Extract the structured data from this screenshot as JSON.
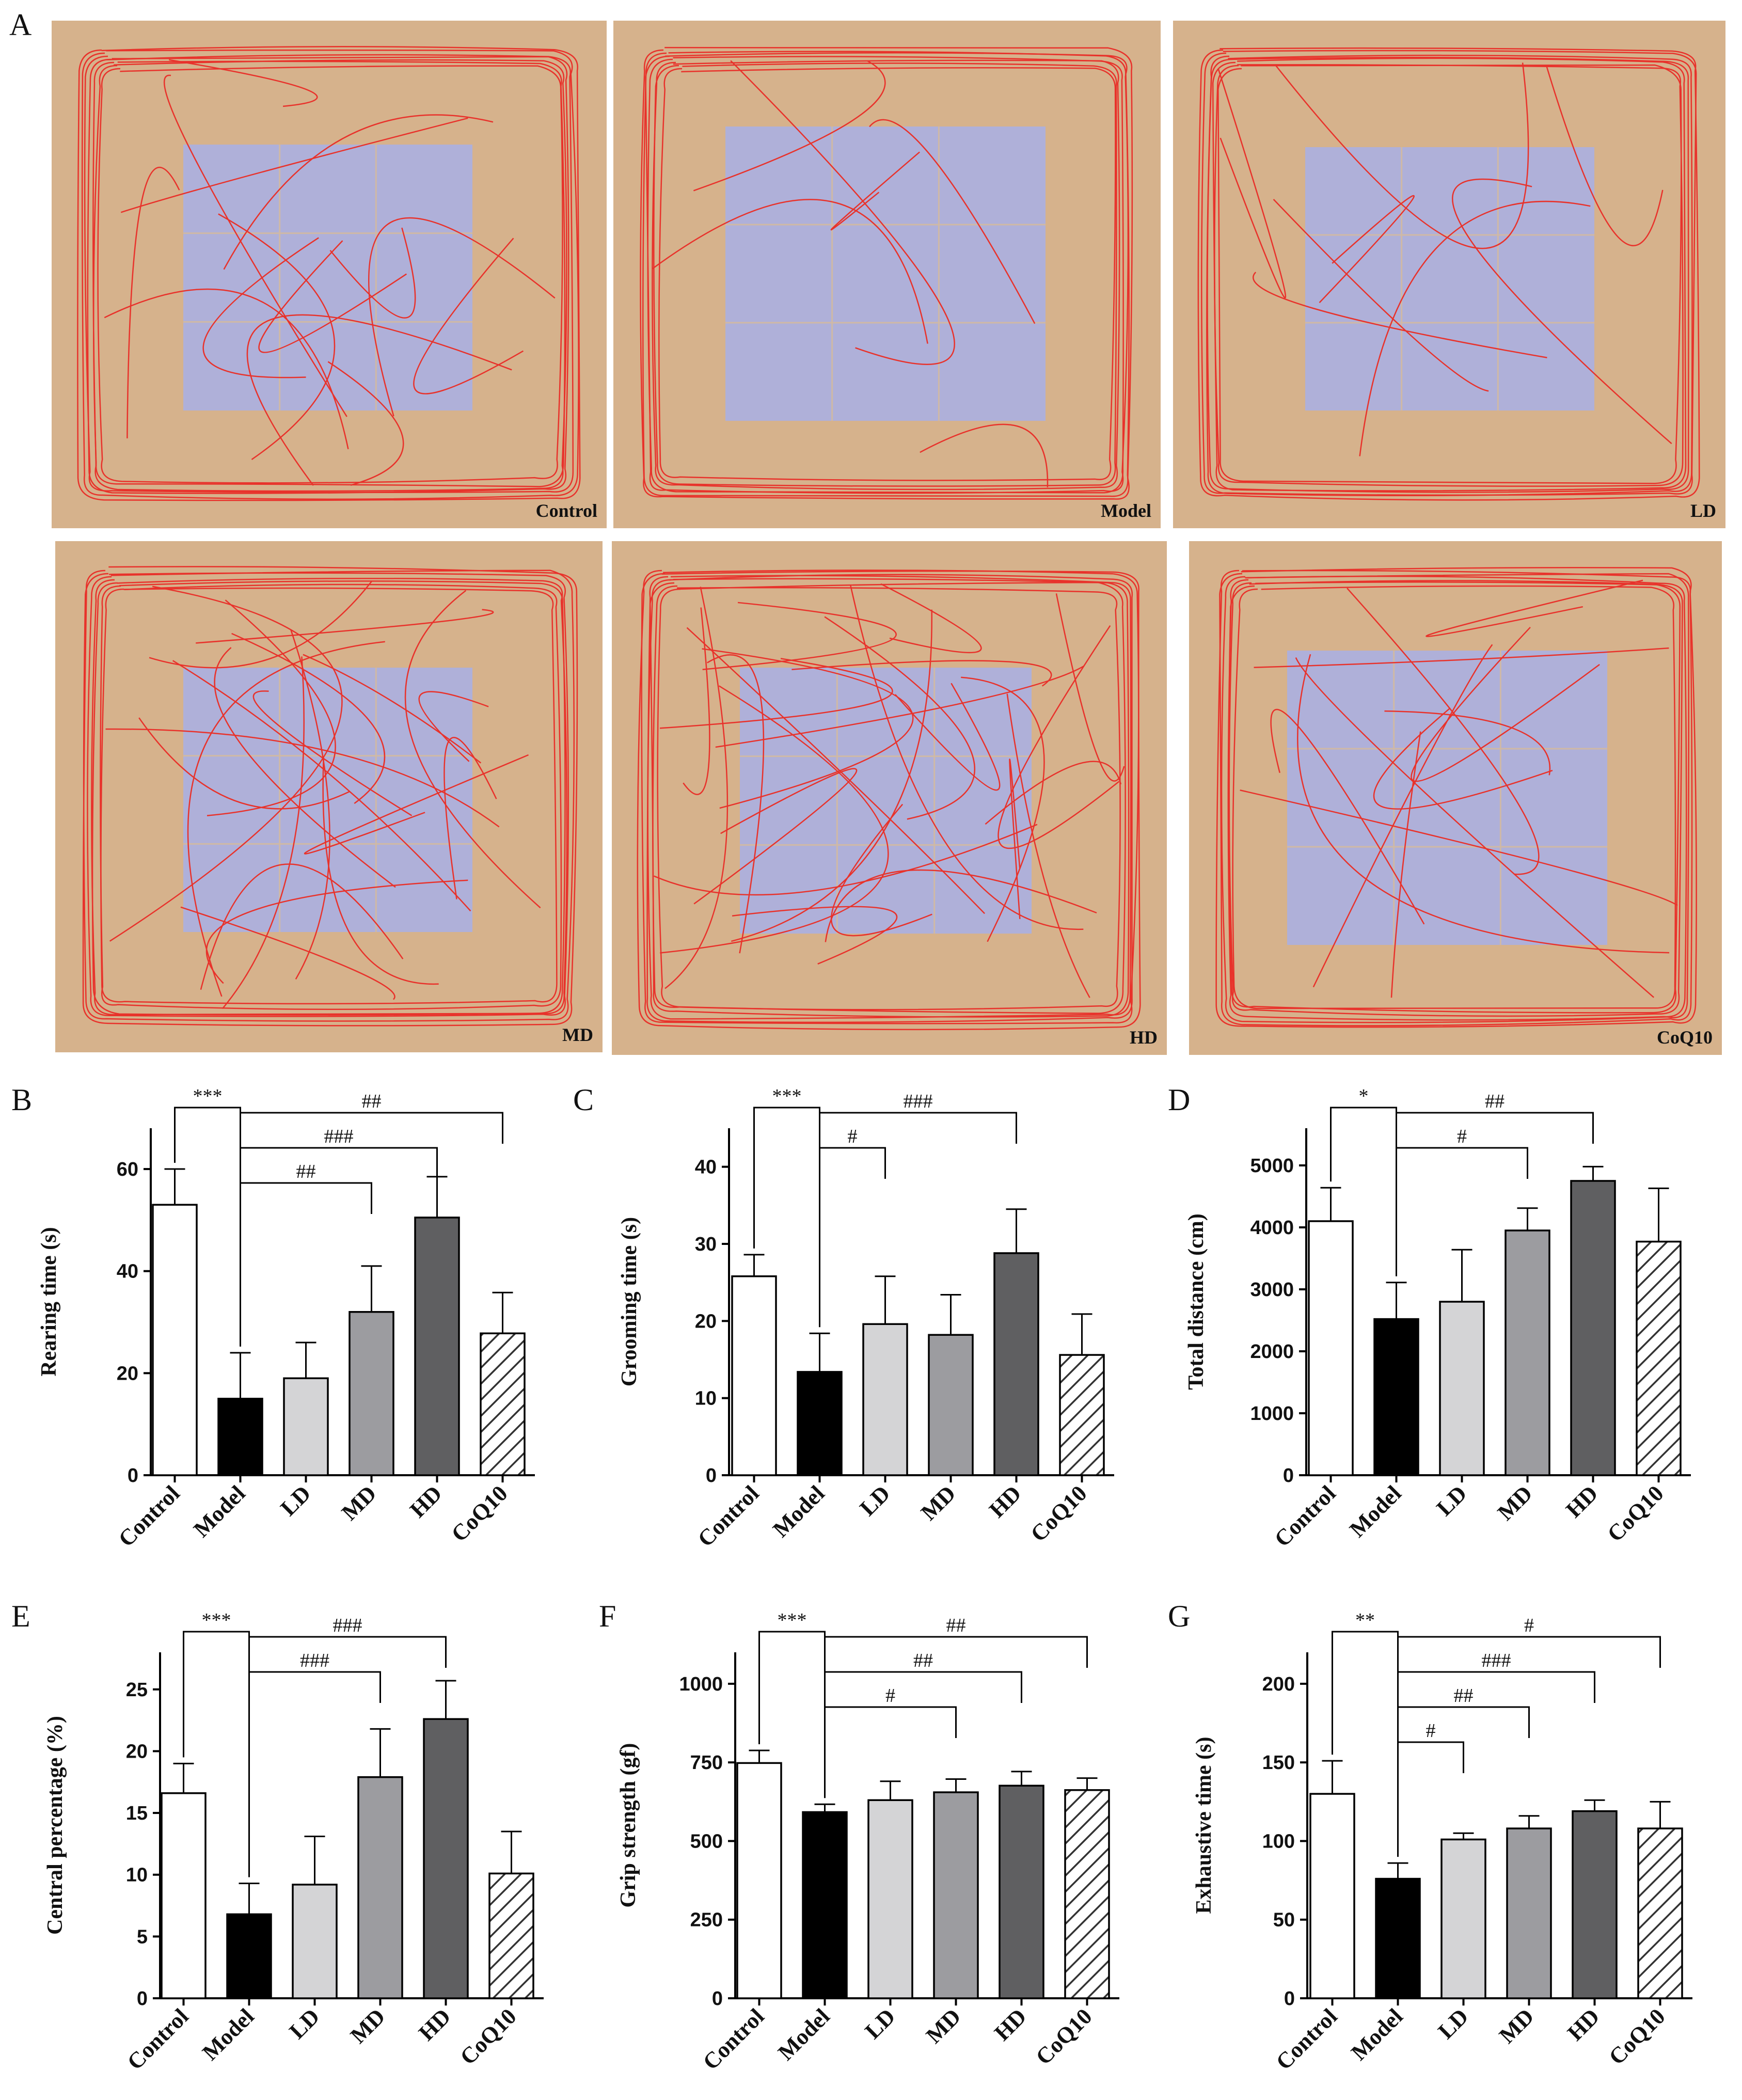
{
  "panel_a": {
    "letter": "A",
    "arenas": [
      {
        "label": "Control"
      },
      {
        "label": "Model"
      },
      {
        "label": "LD"
      },
      {
        "label": "MD"
      },
      {
        "label": "HD"
      },
      {
        "label": "CoQ10"
      }
    ],
    "colors": {
      "floor": "#d6b28c",
      "center": "#afb0d9",
      "grid": "#cfb9a6",
      "track": "#e8322b"
    }
  },
  "chart_data": [
    {
      "id": "B",
      "type": "bar",
      "ylabel": "Rearing time (s)",
      "categories": [
        "Control",
        "Model",
        "LD",
        "MD",
        "HD",
        "CoQ10"
      ],
      "values": [
        53,
        15,
        19,
        32,
        50.5,
        27.8
      ],
      "errors": [
        7,
        9,
        7,
        9,
        8,
        8
      ],
      "ylim": [
        0,
        68
      ],
      "yticks": [
        0,
        20,
        40,
        60
      ],
      "annotations": [
        {
          "from": 0,
          "to": 1,
          "label": "***"
        },
        {
          "from": 1,
          "to": 5,
          "label": "##"
        },
        {
          "from": 1,
          "to": 4,
          "label": "###"
        },
        {
          "from": 1,
          "to": 3,
          "label": "##"
        }
      ]
    },
    {
      "id": "C",
      "type": "bar",
      "ylabel": "Grooming time (s)",
      "categories": [
        "Control",
        "Model",
        "LD",
        "MD",
        "HD",
        "CoQ10"
      ],
      "values": [
        25.8,
        13.4,
        19.6,
        18.2,
        28.8,
        15.6
      ],
      "errors": [
        2.8,
        5,
        6.2,
        5.2,
        5.7,
        5.3
      ],
      "ylim": [
        0,
        45
      ],
      "yticks": [
        0,
        10,
        20,
        30,
        40
      ],
      "annotations": [
        {
          "from": 0,
          "to": 1,
          "label": "***"
        },
        {
          "from": 1,
          "to": 4,
          "label": "###"
        },
        {
          "from": 1,
          "to": 2,
          "label": "#"
        }
      ]
    },
    {
      "id": "D",
      "type": "bar",
      "ylabel": "Total distance (cm)",
      "categories": [
        "Control",
        "Model",
        "LD",
        "MD",
        "HD",
        "CoQ10"
      ],
      "values": [
        4100,
        2520,
        2800,
        3950,
        4750,
        3770
      ],
      "errors": [
        540,
        590,
        840,
        360,
        230,
        860
      ],
      "ylim": [
        0,
        5600
      ],
      "yticks": [
        0,
        1000,
        2000,
        3000,
        4000,
        5000
      ],
      "annotations": [
        {
          "from": 0,
          "to": 1,
          "label": "*"
        },
        {
          "from": 1,
          "to": 4,
          "label": "##"
        },
        {
          "from": 1,
          "to": 3,
          "label": "#"
        }
      ]
    },
    {
      "id": "E",
      "type": "bar",
      "ylabel": "Central percentage (%)",
      "categories": [
        "Control",
        "Model",
        "LD",
        "MD",
        "HD",
        "CoQ10"
      ],
      "values": [
        16.6,
        6.8,
        9.2,
        17.9,
        22.6,
        10.1
      ],
      "errors": [
        2.4,
        2.5,
        3.9,
        3.9,
        3.1,
        3.4
      ],
      "ylim": [
        0,
        28
      ],
      "yticks": [
        0,
        5,
        10,
        15,
        20,
        25
      ],
      "annotations": [
        {
          "from": 0,
          "to": 1,
          "label": "***"
        },
        {
          "from": 1,
          "to": 4,
          "label": "###"
        },
        {
          "from": 1,
          "to": 3,
          "label": "###"
        }
      ]
    },
    {
      "id": "F",
      "type": "bar",
      "ylabel": "Grip strength (gf)",
      "categories": [
        "Control",
        "Model",
        "LD",
        "MD",
        "HD",
        "CoQ10"
      ],
      "values": [
        748,
        592,
        630,
        655,
        676,
        662
      ],
      "errors": [
        40,
        25,
        60,
        42,
        45,
        38
      ],
      "ylim": [
        0,
        1100
      ],
      "yticks": [
        0,
        250,
        500,
        750,
        1000
      ],
      "annotations": [
        {
          "from": 0,
          "to": 1,
          "label": "***"
        },
        {
          "from": 1,
          "to": 5,
          "label": "##"
        },
        {
          "from": 1,
          "to": 4,
          "label": "##"
        },
        {
          "from": 1,
          "to": 3,
          "label": "#"
        }
      ]
    },
    {
      "id": "G",
      "type": "bar",
      "ylabel": "Exhaustive time (s)",
      "categories": [
        "Control",
        "Model",
        "LD",
        "MD",
        "HD",
        "CoQ10"
      ],
      "values": [
        130,
        76,
        101,
        108,
        119,
        108
      ],
      "errors": [
        21,
        10,
        4,
        8,
        7,
        17
      ],
      "ylim": [
        0,
        220
      ],
      "yticks": [
        0,
        50,
        100,
        150,
        200
      ],
      "annotations": [
        {
          "from": 0,
          "to": 1,
          "label": "**"
        },
        {
          "from": 1,
          "to": 5,
          "label": "#"
        },
        {
          "from": 1,
          "to": 4,
          "label": "###"
        },
        {
          "from": 1,
          "to": 3,
          "label": "##"
        },
        {
          "from": 1,
          "to": 2,
          "label": "#"
        }
      ]
    }
  ],
  "bar_styles": [
    {
      "fill": "#ffffff"
    },
    {
      "fill": "#000000"
    },
    {
      "fill": "#d4d4d6"
    },
    {
      "fill": "#9c9ca0"
    },
    {
      "fill": "#5f5f61"
    },
    {
      "fill": "hatch"
    }
  ]
}
